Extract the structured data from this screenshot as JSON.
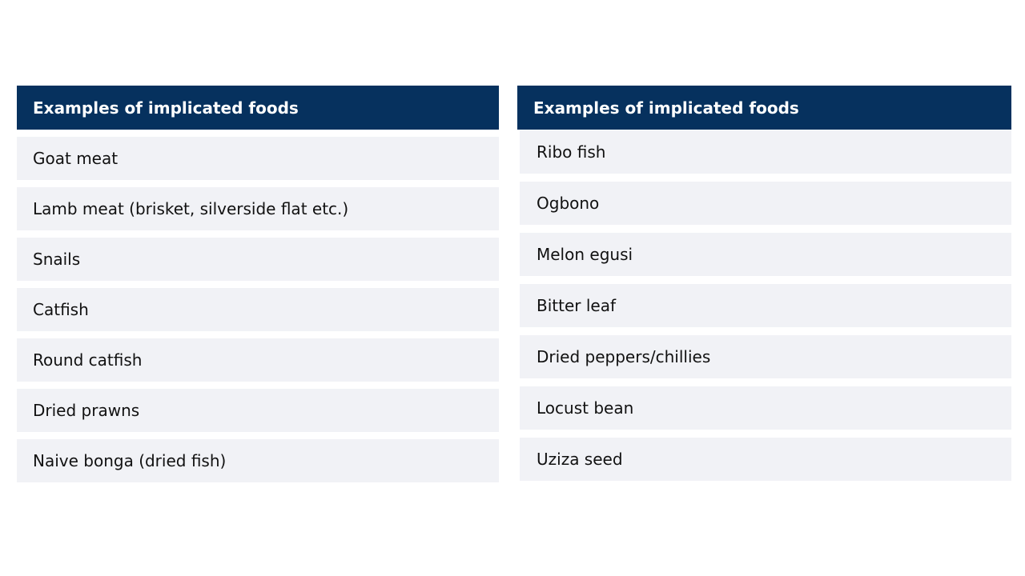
{
  "tables": [
    {
      "header": "Examples of implicated foods",
      "rows": [
        "Goat meat",
        "Lamb meat (brisket, silverside flat etc.)",
        "Snails",
        "Catfish",
        "Round catfish",
        "Dried prawns",
        "Naive bonga (dried fish)"
      ]
    },
    {
      "header": "Examples of implicated foods",
      "rows": [
        "Ribo fish",
        "Ogbono",
        "Melon egusi",
        "Bitter leaf",
        "Dried peppers/chillies",
        "Locust bean",
        "Uziza seed"
      ]
    }
  ]
}
